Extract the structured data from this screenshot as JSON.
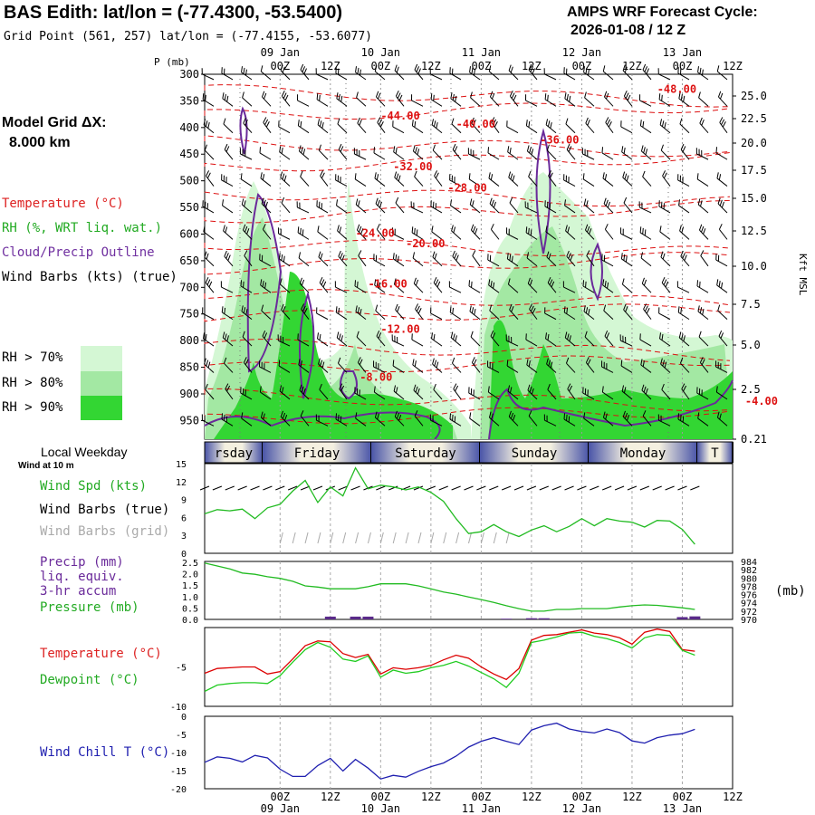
{
  "header": {
    "title": "BAS Edith:  lat/lon = (-77.4300, -53.5400)",
    "grid_point": "Grid Point (561, 257) lat/lon = (-77.4155, -53.6077)",
    "cycle_label": "AMPS WRF Forecast Cycle:",
    "cycle_value": "2026-01-08 / 12  Z"
  },
  "left_legend": {
    "model_grid_label": "Model Grid ΔX:",
    "model_grid_value": "8.000 km",
    "temperature": "Temperature (°C)",
    "rh": "RH (%, WRT liq. wat.)",
    "cloud": "Cloud/Precip Outline",
    "wind_barbs": "Wind Barbs (kts) (true)",
    "rh70": "RH > 70%",
    "rh80": "RH > 80%",
    "rh90": "RH > 90%",
    "rh_colors": [
      "#d4f7d4",
      "#a3e8a3",
      "#33d633"
    ]
  },
  "time_axis": {
    "top_hours": [
      "00Z",
      "12Z",
      "00Z",
      "12Z",
      "00Z",
      "12Z",
      "00Z",
      "12Z",
      "00Z",
      "12Z"
    ],
    "top_days": [
      "09 Jan",
      "10 Jan",
      "11 Jan",
      "12 Jan",
      "13 Jan"
    ],
    "bottom_hours": [
      "00Z",
      "12Z",
      "00Z",
      "12Z",
      "00Z",
      "12Z",
      "00Z",
      "12Z",
      "00Z",
      "12Z"
    ],
    "bottom_days": [
      "09 Jan",
      "10 Jan",
      "11 Jan",
      "12 Jan",
      "13 Jan"
    ]
  },
  "weekday": {
    "label": "Local Weekday",
    "sublabel": "Wind at 10 m",
    "days": [
      "rsday",
      "Friday",
      "Saturday",
      "Sunday",
      "Monday",
      "T"
    ]
  },
  "panel_labels": {
    "wind_spd": "Wind Spd (kts)",
    "wind_barbs_true": "Wind Barbs (true)",
    "wind_barbs_grid": "Wind Barbs (grid)",
    "precip1": "Precip (mm)",
    "precip2": "liq. equiv.",
    "precip3": "3-hr accum",
    "pressure": "Pressure (mb)",
    "pressure_unit": "(mb)",
    "temperature": "Temperature (°C)",
    "dewpoint": "Dewpoint (°C)",
    "wind_chill": "Wind Chill T (°C)",
    "p_axis_title": "P (mb)",
    "kft_axis_title": "Kft MSL"
  },
  "chart_data": [
    {
      "type": "heatmap",
      "name": "cross-section",
      "p_ticks": [
        300,
        350,
        400,
        450,
        500,
        550,
        600,
        650,
        700,
        750,
        800,
        850,
        900,
        950
      ],
      "kft_ticks": [
        "25.0",
        "22.5",
        "20.0",
        "17.5",
        "15.0",
        "12.5",
        "10.0",
        "7.5",
        "5.0",
        "2.5",
        "0.21"
      ],
      "temp_labels": [
        {
          "text": "-48.00",
          "x": 108,
          "p": 335
        },
        {
          "text": "-44.00",
          "x": 42,
          "p": 385
        },
        {
          "text": "-40.00",
          "x": 60,
          "p": 400
        },
        {
          "text": "-36.00",
          "x": 80,
          "p": 430
        },
        {
          "text": "-32.00",
          "x": 45,
          "p": 480
        },
        {
          "text": "-28.00",
          "x": 58,
          "p": 520
        },
        {
          "text": "-24.00",
          "x": 36,
          "p": 605
        },
        {
          "text": "-20.00",
          "x": 48,
          "p": 625
        },
        {
          "text": "-16.00",
          "x": 39,
          "p": 700
        },
        {
          "text": "-12.00",
          "x": 42,
          "p": 785
        },
        {
          "text": "-8.00",
          "x": 37,
          "p": 875
        },
        {
          "text": "-4.00",
          "x": 129,
          "p": 920
        }
      ]
    },
    {
      "type": "line",
      "name": "wind",
      "x_hours": [
        0,
        3,
        6,
        9,
        12,
        15,
        18,
        21,
        24,
        27,
        30,
        33,
        36,
        39,
        42,
        45,
        48,
        51,
        54,
        57,
        60,
        63,
        66,
        69,
        72,
        75,
        78,
        81,
        84,
        87,
        90,
        93,
        96,
        99,
        102,
        105,
        108,
        111,
        114,
        117
      ],
      "series": [
        {
          "name": "Wind Spd (kts)",
          "color": "#22bb22",
          "values": [
            6.6,
            7.3,
            7.1,
            7.4,
            5.8,
            7.6,
            8.2,
            10.4,
            12.2,
            8.5,
            11.1,
            9.6,
            14.3,
            10.8,
            11.4,
            11.1,
            10.6,
            11.1,
            10.2,
            8.7,
            5.8,
            3.3,
            3.6,
            4.8,
            3.6,
            2.8,
            3.9,
            4.6,
            3.6,
            4.5,
            5.8,
            4.6,
            5.8,
            5.4,
            5.2,
            4.4,
            5.5,
            5.4,
            4.0,
            1.5
          ]
        }
      ],
      "yticks": [
        0,
        3,
        6,
        9,
        12,
        15
      ],
      "ylim": [
        0,
        15
      ]
    },
    {
      "type": "line",
      "name": "precip-pressure",
      "series": [
        {
          "name": "Pressure (mb)",
          "color": "#22bb22",
          "values": [
            983.6,
            982.9,
            982.2,
            981.2,
            980.9,
            980.3,
            979.9,
            979.2,
            978.1,
            977.8,
            977.4,
            977.4,
            977.4,
            977.9,
            978.6,
            978.6,
            978.6,
            978.1,
            977.4,
            976.6,
            976.1,
            975.4,
            974.8,
            974.1,
            973.3,
            972.6,
            972.0,
            972.0,
            972.4,
            972.4,
            972.6,
            972.6,
            972.6,
            973.0,
            973.3,
            973.5,
            973.4,
            973.1,
            972.8,
            972.4
          ]
        },
        {
          "name": "Precip (mm)",
          "color": "#5a2a8a",
          "values": [
            0,
            0,
            0,
            0,
            0,
            0,
            0,
            0,
            0,
            0,
            0.12,
            0,
            0.12,
            0.12,
            0,
            0,
            0,
            0,
            0,
            0,
            0,
            0,
            0,
            0,
            0.03,
            0,
            0.05,
            0.05,
            0,
            0,
            0,
            0,
            0,
            0,
            0,
            0,
            0,
            0,
            0.1,
            0.13
          ]
        }
      ],
      "precip_ticks": [
        "2.5",
        "2.0",
        "1.5",
        "1.0",
        "0.5",
        "0.0"
      ],
      "pressure_ticks": [
        "984",
        "982",
        "980",
        "978",
        "976",
        "974",
        "972",
        "970"
      ],
      "precip_ylim": [
        0,
        2.5
      ],
      "pressure_ylim": [
        970,
        984
      ]
    },
    {
      "type": "line",
      "name": "temperature-dewpoint",
      "series": [
        {
          "name": "Temperature (°C)",
          "color": "#dd0000",
          "values": [
            -5.8,
            -5.2,
            -5.1,
            -5.0,
            -5.0,
            -5.9,
            -5.6,
            -4.0,
            -2.3,
            -1.7,
            -1.8,
            -3.3,
            -3.8,
            -3.4,
            -5.9,
            -5.1,
            -5.3,
            -5.1,
            -4.8,
            -4.1,
            -3.5,
            -3.9,
            -5.0,
            -5.9,
            -6.6,
            -5.2,
            -1.6,
            -1.0,
            -0.9,
            -0.6,
            -0.3,
            -0.7,
            -0.9,
            -1.3,
            -2.1,
            -0.6,
            -0.2,
            -0.5,
            -2.8,
            -3.0
          ]
        },
        {
          "name": "Dewpoint (°C)",
          "color": "#22cc22",
          "values": [
            -8.1,
            -7.3,
            -7.1,
            -7.0,
            -7.0,
            -7.1,
            -6.1,
            -4.4,
            -2.8,
            -1.9,
            -2.5,
            -4.0,
            -4.3,
            -3.6,
            -6.3,
            -5.4,
            -5.8,
            -5.6,
            -5.1,
            -4.8,
            -4.3,
            -4.9,
            -5.7,
            -6.5,
            -7.6,
            -5.8,
            -1.9,
            -1.6,
            -1.2,
            -0.7,
            -0.6,
            -1.1,
            -1.4,
            -1.9,
            -2.6,
            -1.3,
            -0.9,
            -1.0,
            -2.9,
            -3.5
          ]
        }
      ],
      "yticks": [
        -10,
        -5
      ],
      "ylim": [
        -10,
        0
      ]
    },
    {
      "type": "line",
      "name": "wind-chill",
      "series": [
        {
          "name": "Wind Chill T (°C)",
          "color": "#2020b0",
          "values": [
            -12.7,
            -11.2,
            -11.6,
            -12.6,
            -10.8,
            -11.5,
            -14.6,
            -16.6,
            -16.6,
            -13.6,
            -11.6,
            -15.1,
            -11.9,
            -14.3,
            -17.3,
            -16.3,
            -16.8,
            -15.2,
            -13.9,
            -12.9,
            -11.0,
            -8.5,
            -6.9,
            -5.9,
            -6.9,
            -7.8,
            -3.8,
            -2.6,
            -1.9,
            -3.5,
            -4.2,
            -4.6,
            -3.5,
            -4.5,
            -6.8,
            -7.4,
            -5.9,
            -5.2,
            -4.8,
            -3.6
          ]
        }
      ],
      "yticks": [
        -20,
        -15,
        -10,
        -5,
        0
      ],
      "ylim": [
        -20,
        0
      ]
    }
  ]
}
